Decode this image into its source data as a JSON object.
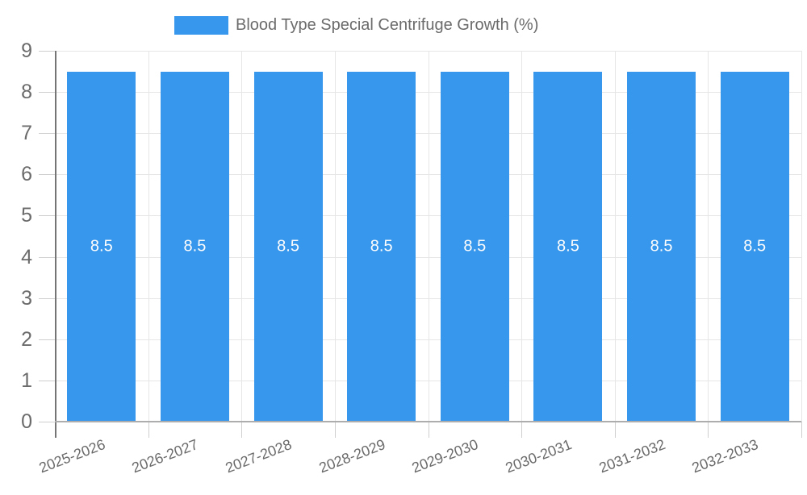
{
  "chart_data": {
    "type": "bar",
    "title": "Blood Type Special Centrifuge Growth (%)",
    "legend": {
      "label": "Blood Type Special Centrifuge Growth (%)",
      "position": "top"
    },
    "categories": [
      "2025-2026",
      "2026-2027",
      "2027-2028",
      "2028-2029",
      "2029-2030",
      "2030-2031",
      "2031-2032",
      "2032-2033"
    ],
    "series": [
      {
        "name": "Blood Type Special Centrifuge Growth (%)",
        "values": [
          8.5,
          8.5,
          8.5,
          8.5,
          8.5,
          8.5,
          8.5,
          8.5
        ]
      }
    ],
    "bar_value_labels": [
      "8.5",
      "8.5",
      "8.5",
      "8.5",
      "8.5",
      "8.5",
      "8.5",
      "8.5"
    ],
    "xlabel": "",
    "ylabel": "",
    "ylim": [
      0,
      9
    ],
    "yticks": [
      0,
      1,
      2,
      3,
      4,
      5,
      6,
      7,
      8,
      9
    ],
    "grid": true,
    "colors": {
      "bar": "#3797EC",
      "bar_label": "#fcfcfc",
      "grid": "#e6e6e6",
      "tick": "#cfcfcf",
      "axis_y_line": "#757575",
      "axis_x_line": "#adadad",
      "axis_text": "#6b6b6b",
      "legend_text": "#6b6b6b",
      "background": "#ffffff"
    }
  }
}
